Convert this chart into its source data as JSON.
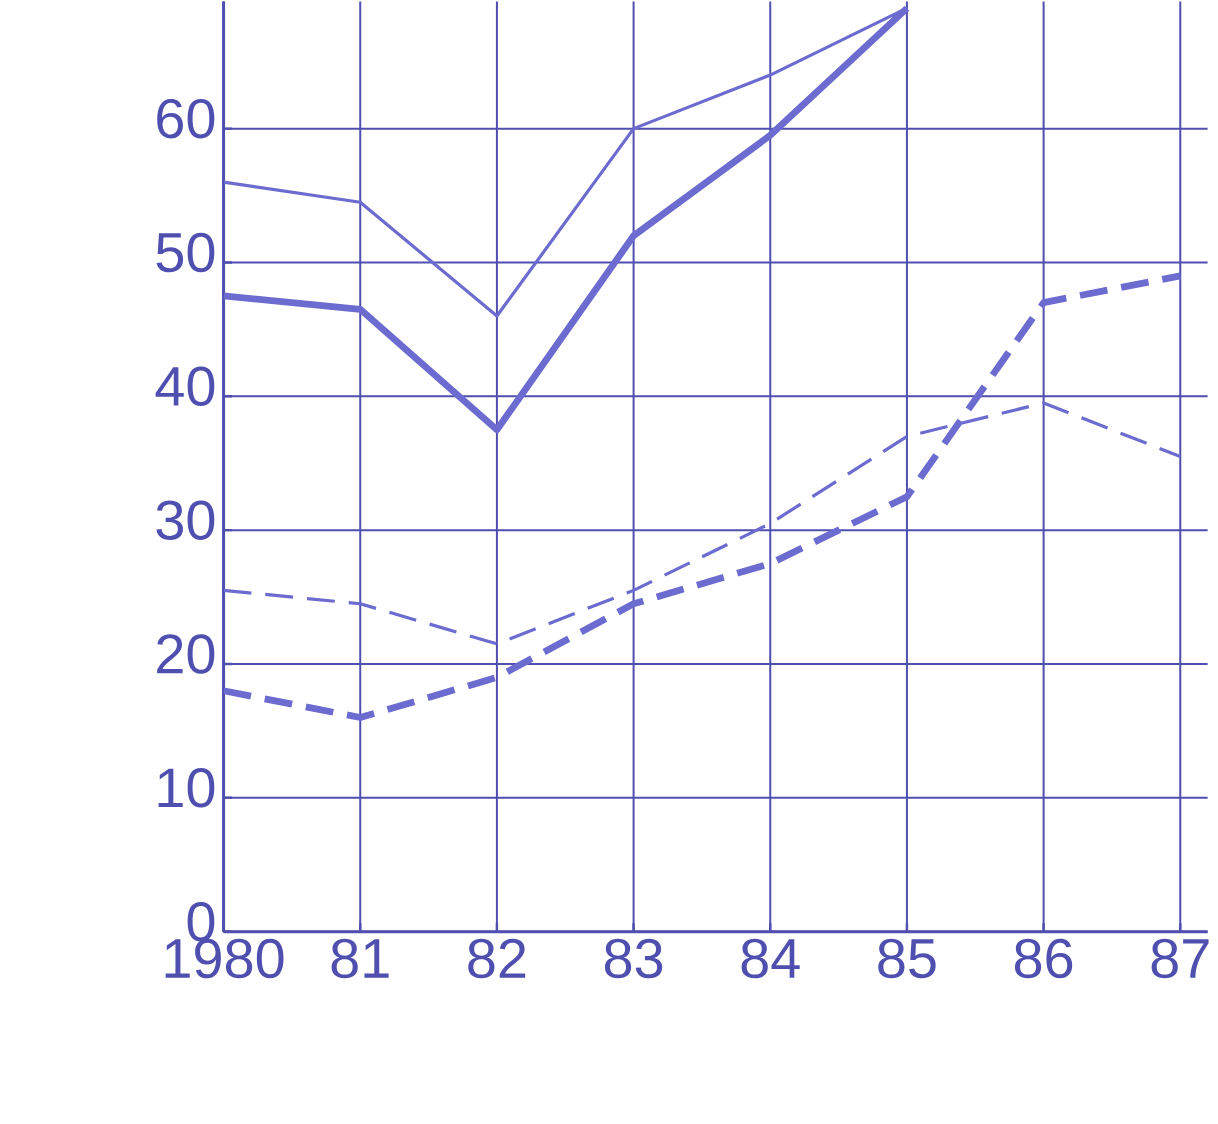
{
  "chart_data": {
    "type": "line",
    "x": [
      1980,
      1981,
      1982,
      1983,
      1984,
      1985,
      1986,
      1987
    ],
    "series": [
      {
        "color": "#6b6bd0",
        "line_style": "solid",
        "values": [
          56,
          54.5,
          46,
          60,
          64,
          69,
          null,
          null
        ]
      },
      {
        "color": "#6b6bd0",
        "line_style": "solid",
        "values": [
          47.5,
          46.5,
          37.5,
          52,
          59.5,
          69,
          null,
          null
        ]
      },
      {
        "color": "#6b6bd0",
        "line_style": "dashed",
        "values": [
          25.5,
          24.5,
          21.5,
          25.5,
          30.5,
          37,
          39.5,
          35.5
        ]
      },
      {
        "color": "#6b6bd0",
        "line_style": "dashed",
        "values": [
          18,
          16,
          19,
          24.5,
          27.5,
          32.5,
          47,
          49
        ]
      }
    ],
    "xlim": [
      1980,
      1987.2
    ],
    "ylim": [
      0,
      69.5
    ],
    "xticks": [
      {
        "value": 1980,
        "label": "1980"
      },
      {
        "value": 1981,
        "label": "81"
      },
      {
        "value": 1982,
        "label": "82"
      },
      {
        "value": 1983,
        "label": "83"
      },
      {
        "value": 1984,
        "label": "84"
      },
      {
        "value": 1985,
        "label": "85"
      },
      {
        "value": 1986,
        "label": "86"
      },
      {
        "value": 1987,
        "label": "87"
      }
    ],
    "yticks": [
      0,
      10,
      20,
      30,
      40,
      50,
      60
    ],
    "grid": true,
    "marker": "none"
  }
}
